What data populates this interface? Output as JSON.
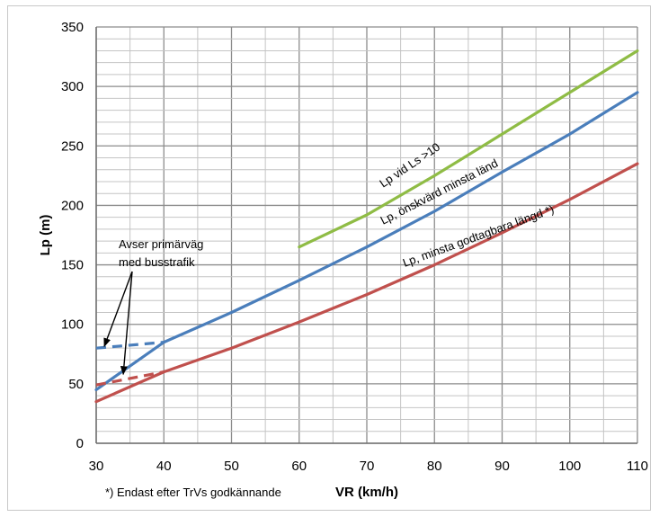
{
  "chart_data": {
    "type": "line",
    "xlabel": "VR (km/h)",
    "ylabel": "Lp (m)",
    "xlim": [
      30,
      110
    ],
    "ylim": [
      0,
      350
    ],
    "x_major_step": 10,
    "x_minor_step": 5,
    "y_major_step": 50,
    "y_minor_step": 10,
    "grid": true,
    "x_ticks": [
      "30",
      "40",
      "50",
      "60",
      "70",
      "80",
      "90",
      "100",
      "110"
    ],
    "y_ticks": [
      "0",
      "50",
      "100",
      "150",
      "200",
      "250",
      "300",
      "350"
    ],
    "series": [
      {
        "label": "Lp vid Ls >10",
        "color": "#8fbc45",
        "style": "solid",
        "points": [
          [
            60,
            165
          ],
          [
            70,
            192
          ],
          [
            80,
            225
          ],
          [
            90,
            260
          ],
          [
            100,
            295
          ],
          [
            110,
            330
          ]
        ]
      },
      {
        "label": "Lp, önskvärd minsta länd",
        "color": "#4a7ebb",
        "style": "solid",
        "points": [
          [
            30,
            45
          ],
          [
            40,
            85
          ],
          [
            50,
            110
          ],
          [
            60,
            137
          ],
          [
            70,
            165
          ],
          [
            80,
            195
          ],
          [
            90,
            228
          ],
          [
            100,
            260
          ],
          [
            110,
            295
          ]
        ]
      },
      {
        "label": "Lp, minsta godtagbara längd *)",
        "color": "#c0504d",
        "style": "solid",
        "points": [
          [
            30,
            35
          ],
          [
            40,
            60
          ],
          [
            50,
            80
          ],
          [
            60,
            102
          ],
          [
            70,
            125
          ],
          [
            80,
            150
          ],
          [
            90,
            177
          ],
          [
            100,
            205
          ],
          [
            110,
            235
          ]
        ]
      },
      {
        "color": "#4a7ebb",
        "style": "dashed",
        "points": [
          [
            30,
            80
          ],
          [
            40,
            85
          ]
        ]
      },
      {
        "color": "#c0504d",
        "style": "dashed",
        "points": [
          [
            30,
            49
          ],
          [
            40,
            60
          ]
        ]
      }
    ],
    "annotation": {
      "lines": [
        "Avser primärväg",
        "med busstrafik"
      ]
    },
    "footnote": "*) Endast efter TrVs godkännande"
  }
}
